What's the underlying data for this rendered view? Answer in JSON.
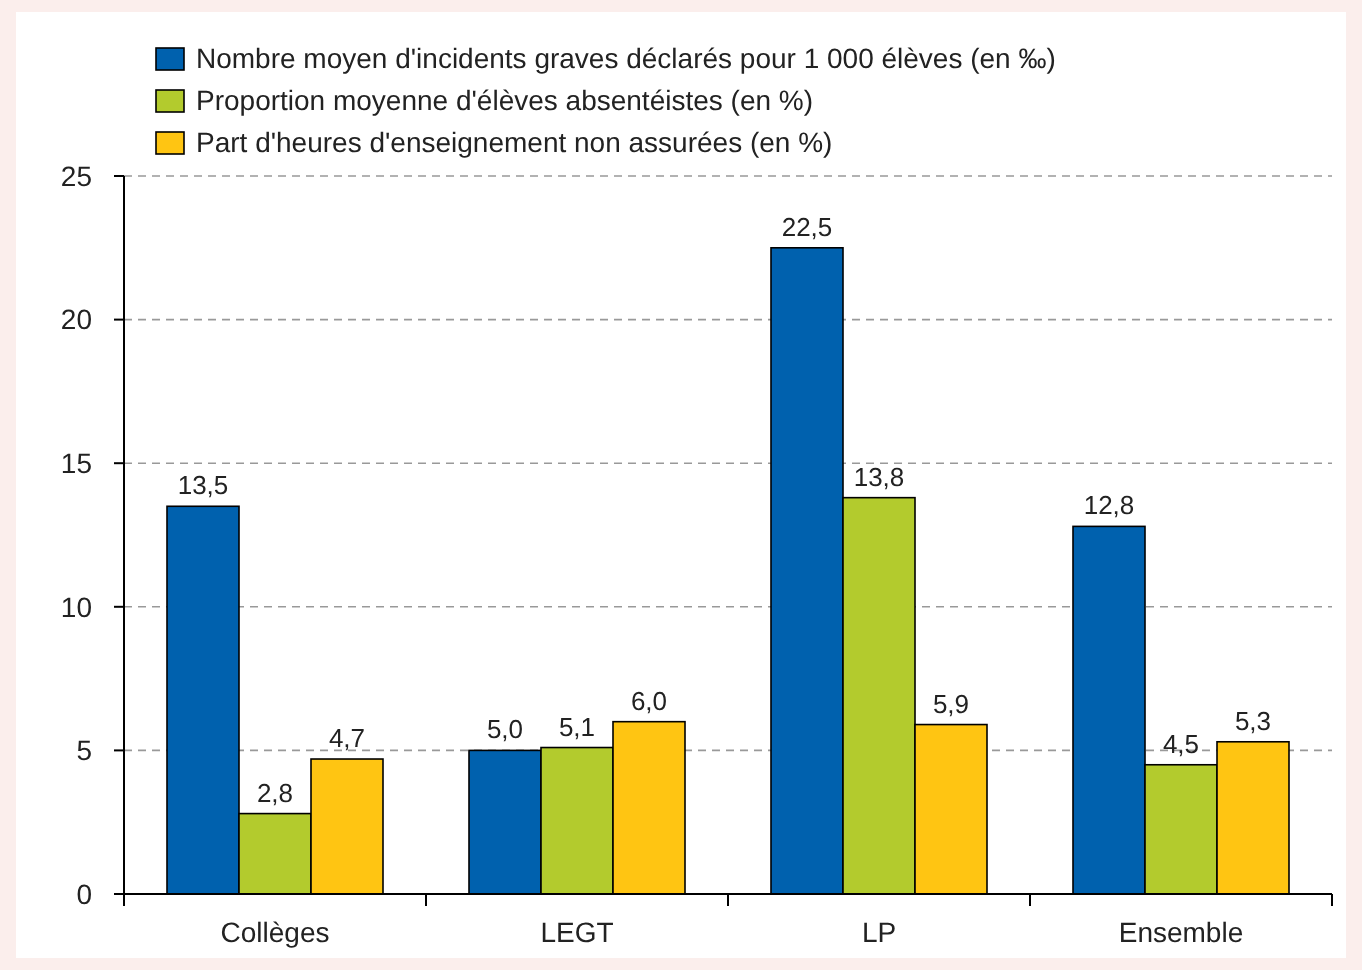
{
  "chart_data": {
    "type": "bar",
    "categories": [
      "Collèges",
      "LEGT",
      "LP",
      "Ensemble"
    ],
    "series": [
      {
        "name": "Nombre moyen d'incidents graves déclarés pour 1 000 élèves (en ‰)",
        "color": "#0061ae",
        "values": [
          13.5,
          5.0,
          22.5,
          12.8
        ],
        "value_labels": [
          "13,5",
          "5,0",
          "22,5",
          "12,8"
        ]
      },
      {
        "name": "Proportion moyenne d'élèves absentéistes (en %)",
        "color": "#b3cb2d",
        "values": [
          2.8,
          5.1,
          13.8,
          4.5
        ],
        "value_labels": [
          "2,8",
          "5,1",
          "13,8",
          "4,5"
        ]
      },
      {
        "name": "Part d'heures d'enseignement non assurées (en %)",
        "color": "#ffc512",
        "values": [
          4.7,
          6.0,
          5.9,
          5.3
        ],
        "value_labels": [
          "4,7",
          "6,0",
          "5,9",
          "5,3"
        ]
      }
    ],
    "ylim": [
      0,
      25
    ],
    "yticks": [
      0,
      5,
      10,
      15,
      20,
      25
    ],
    "grid": "y",
    "legend": "top left"
  }
}
